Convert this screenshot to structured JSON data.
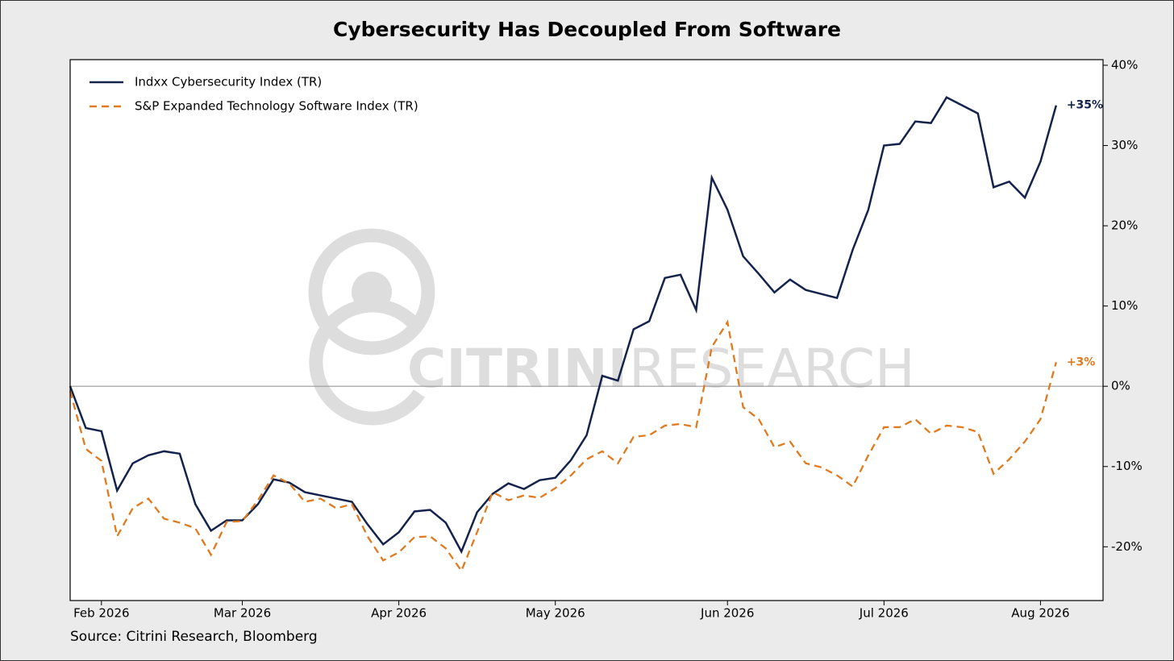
{
  "chart_data": {
    "type": "line",
    "title": "Cybersecurity Has Decoupled From Software",
    "source": "Source: Citrini Research, Bloomberg",
    "watermark": [
      "CITRINI",
      "RESEARCH"
    ],
    "legend": "upper left",
    "y_axis_side": "right",
    "zero_line": true,
    "categories": [
      null,
      null,
      "Feb 2026",
      null,
      null,
      null,
      null,
      null,
      null,
      null,
      null,
      "Mar 2026",
      null,
      null,
      null,
      null,
      null,
      null,
      null,
      null,
      null,
      "Apr 2026",
      null,
      null,
      null,
      null,
      null,
      null,
      null,
      null,
      null,
      "May 2026",
      null,
      null,
      null,
      null,
      null,
      null,
      null,
      null,
      null,
      null,
      "Jun 2026",
      null,
      null,
      null,
      null,
      null,
      null,
      null,
      null,
      null,
      "Jul 2026",
      null,
      null,
      null,
      null,
      null,
      null,
      null,
      null,
      null,
      "Aug 2026",
      null
    ],
    "ylim": [
      -26.7,
      40.7
    ],
    "yticks": [
      {
        "value": -20,
        "label": "-20%"
      },
      {
        "value": -10,
        "label": "-10%"
      },
      {
        "value": 0,
        "label": "0%"
      },
      {
        "value": 10,
        "label": "10%"
      },
      {
        "value": 20,
        "label": "20%"
      },
      {
        "value": 30,
        "label": "30%"
      },
      {
        "value": 40,
        "label": "40%"
      }
    ],
    "series": [
      {
        "name": "Indxx Cybersecurity Index (TR)",
        "color": "#14234b",
        "dash": false,
        "end_label": "+35%",
        "values": [
          0,
          -5.2,
          -5.6,
          -13,
          -9.6,
          -8.6,
          -8.1,
          -8.4,
          -14.7,
          -18,
          -16.7,
          -16.7,
          -14.7,
          -11.6,
          -12,
          -13.2,
          -13.6,
          -14,
          -14.4,
          -17.2,
          -19.7,
          -18.2,
          -15.6,
          -15.4,
          -17,
          -20.6,
          -15.7,
          -13.4,
          -12.1,
          -12.8,
          -11.7,
          -11.4,
          -9.2,
          -6.1,
          1.3,
          0.7,
          7.1,
          8.1,
          13.5,
          13.9,
          9.5,
          26,
          22,
          16.2,
          14,
          11.7,
          13.3,
          12,
          11.5,
          11,
          17,
          22,
          30,
          30.2,
          33,
          32.8,
          36,
          35,
          34,
          24.8,
          25.5,
          23.5,
          28,
          35
        ]
      },
      {
        "name": "S&P Expanded Technology Software Index (TR)",
        "color": "#e07a1f",
        "dash": true,
        "end_label": "+3%",
        "values": [
          -0.6,
          -7.8,
          -9.3,
          -18.7,
          -15.2,
          -14,
          -16.5,
          -17,
          -17.7,
          -21,
          -16.9,
          -16.8,
          -14.2,
          -11.1,
          -12.1,
          -14.4,
          -14,
          -15.2,
          -14.7,
          -18.7,
          -21.7,
          -20.7,
          -18.8,
          -18.7,
          -20.2,
          -23,
          -18.2,
          -13.2,
          -14.2,
          -13.6,
          -13.9,
          -12.7,
          -11.1,
          -9.1,
          -8.1,
          -9.6,
          -6.3,
          -6.1,
          -4.9,
          -4.7,
          -5.1,
          4.9,
          8,
          -2.6,
          -4.1,
          -7.6,
          -6.9,
          -9.6,
          -10.1,
          -11.1,
          -12.5,
          -8.6,
          -5.1,
          -5.1,
          -4.1,
          -5.9,
          -4.9,
          -5.1,
          -5.7,
          -10.9,
          -9.1,
          -6.9,
          -4.1,
          3
        ]
      }
    ]
  }
}
